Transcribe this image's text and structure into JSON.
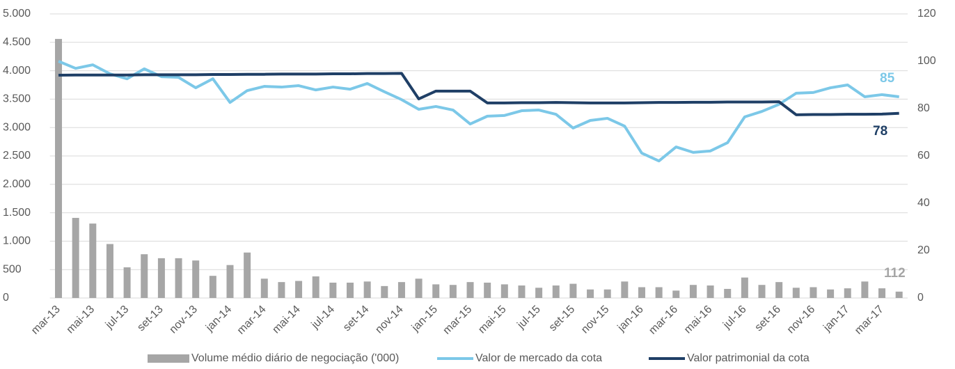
{
  "chart_data": {
    "type": "bar-line",
    "categories": [
      "mar-13",
      null,
      "mai-13",
      null,
      "jul-13",
      null,
      "set-13",
      null,
      "nov-13",
      null,
      "jan-14",
      null,
      "mar-14",
      null,
      "mai-14",
      null,
      "jul-14",
      null,
      "set-14",
      null,
      "nov-14",
      null,
      "jan-15",
      null,
      "mar-15",
      null,
      "mai-15",
      null,
      "jul-15",
      null,
      "set-15",
      null,
      "nov-15",
      null,
      "jan-16",
      null,
      "mar-16",
      null,
      "mai-16",
      null,
      "jul-16",
      null,
      "set-16",
      null,
      "nov-16",
      null,
      "jan-17",
      null,
      "mar-17",
      null
    ],
    "series": [
      {
        "name": "Volume médio diário de negociação ('000)",
        "type": "bar",
        "color": "#a6a6a6",
        "values": [
          4560,
          1410,
          1310,
          950,
          540,
          770,
          700,
          700,
          660,
          390,
          580,
          800,
          340,
          280,
          300,
          380,
          270,
          270,
          290,
          210,
          280,
          340,
          240,
          230,
          280,
          270,
          240,
          220,
          180,
          220,
          250,
          150,
          150,
          290,
          190,
          190,
          130,
          230,
          220,
          160,
          360,
          230,
          280,
          180,
          190,
          150,
          170,
          290,
          170,
          112
        ]
      },
      {
        "name": "Valor de mercado da cota",
        "type": "line",
        "axis": "y2",
        "color": "#7cc8e8",
        "values": [
          100,
          97,
          98.5,
          94.7,
          92.6,
          96.8,
          93.5,
          93.2,
          88.8,
          92.6,
          82.6,
          87.6,
          89.4,
          89.1,
          89.7,
          87.9,
          89.1,
          88.2,
          90.6,
          87.1,
          83.8,
          79.7,
          80.9,
          79.4,
          73.5,
          76.8,
          77.1,
          79.1,
          79.4,
          77.6,
          71.8,
          75,
          75.9,
          72.6,
          61.2,
          57.9,
          63.8,
          61.5,
          62.1,
          65.6,
          76.5,
          78.8,
          81.8,
          86.5,
          86.8,
          88.8,
          90,
          85,
          85.9,
          85
        ]
      },
      {
        "name": "Valor patrimonial da cota",
        "type": "line",
        "axis": "y2",
        "color": "#1f3f66",
        "values": [
          94.1,
          94.2,
          94.2,
          94.2,
          94.2,
          94.3,
          94.3,
          94.3,
          94.3,
          94.4,
          94.4,
          94.5,
          94.5,
          94.6,
          94.6,
          94.6,
          94.7,
          94.7,
          94.8,
          94.8,
          94.9,
          84.1,
          87.4,
          87.4,
          87.4,
          82.4,
          82.4,
          82.5,
          82.5,
          82.6,
          82.5,
          82.4,
          82.4,
          82.4,
          82.5,
          82.6,
          82.6,
          82.7,
          82.7,
          82.8,
          82.8,
          82.8,
          82.9,
          77.4,
          77.5,
          77.5,
          77.6,
          77.6,
          77.7,
          78
        ]
      }
    ],
    "ylim": [
      0,
      5000
    ],
    "yticks": [
      0,
      500,
      {
        "value": 1000,
        "label": "1.000"
      },
      {
        "value": 1500,
        "label": "1.500"
      },
      {
        "value": 2000,
        "label": "2.000"
      },
      {
        "value": 2500,
        "label": "2.500"
      },
      {
        "value": 3000,
        "label": "3.000"
      },
      {
        "value": 3500,
        "label": "3.500"
      },
      {
        "value": 4000,
        "label": "4.000"
      },
      {
        "value": 4500,
        "label": "4.500"
      },
      {
        "value": 5000,
        "label": "5.000"
      }
    ],
    "y2lim": [
      0,
      120
    ],
    "y2ticks": [
      0,
      20,
      40,
      60,
      80,
      100,
      120
    ],
    "grid": true
  }
}
